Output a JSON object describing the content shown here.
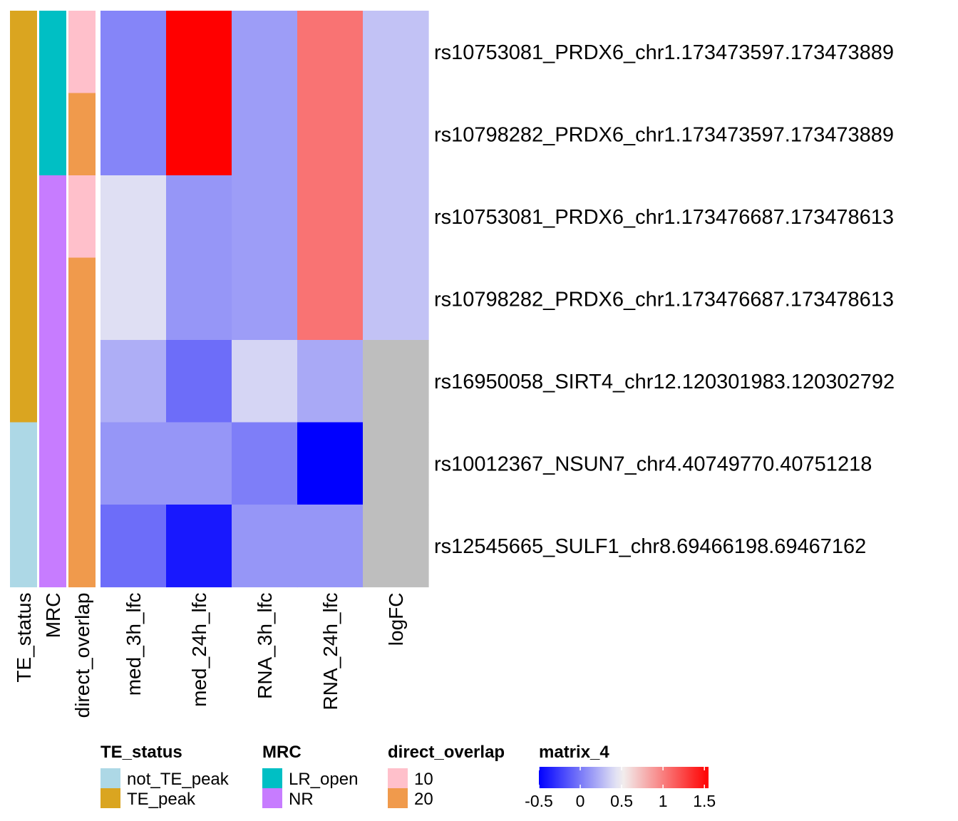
{
  "chart_data": {
    "type": "heatmap",
    "rows": [
      "rs10753081_PRDX6_chr1.173473597.173473889",
      "rs10798282_PRDX6_chr1.173473597.173473889",
      "rs10753081_PRDX6_chr1.173476687.173478613",
      "rs10798282_PRDX6_chr1.173476687.173478613",
      "rs16950058_SIRT4_chr12.120301983.120302792",
      "rs10012367_NSUN7_chr4.40749770.40751218",
      "rs12545665_SULF1_chr8.69466198.69467162"
    ],
    "columns": [
      "med_3h_lfc",
      "med_24h_lfc",
      "RNA_3h_lfc",
      "RNA_24h_lfc",
      "logFC"
    ],
    "values": [
      [
        0.05,
        1.55,
        0.15,
        1.05,
        0.3
      ],
      [
        0.05,
        1.55,
        0.15,
        1.05,
        0.3
      ],
      [
        0.42,
        0.12,
        0.15,
        1.05,
        0.3
      ],
      [
        0.42,
        0.12,
        0.15,
        1.05,
        0.3
      ],
      [
        0.22,
        -0.05,
        0.38,
        0.2,
        null
      ],
      [
        0.12,
        0.12,
        0.02,
        -0.5,
        null
      ],
      [
        -0.05,
        -0.4,
        0.12,
        0.12,
        null
      ]
    ],
    "na_color": "#BEBEBE",
    "color_scale": {
      "name": "matrix_4",
      "min": -0.5,
      "mid": 0.5,
      "max": 1.55,
      "low_color": "#0000FF",
      "mid_color": "#F2F2F2",
      "high_color": "#FF0000",
      "ticks": [
        -0.5,
        0,
        0.5,
        1,
        1.5
      ]
    },
    "annotations": [
      {
        "name": "TE_status",
        "values": [
          "TE_peak",
          "TE_peak",
          "TE_peak",
          "TE_peak",
          "TE_peak",
          "not_TE_peak",
          "not_TE_peak"
        ],
        "colors": {
          "not_TE_peak": "#ADD8E6",
          "TE_peak": "#DAA520"
        }
      },
      {
        "name": "MRC",
        "values": [
          "LR_open",
          "LR_open",
          "NR",
          "NR",
          "NR",
          "NR",
          "NR"
        ],
        "colors": {
          "LR_open": "#00BFC4",
          "NR": "#C77CFF"
        }
      },
      {
        "name": "direct_overlap",
        "values": [
          "10",
          "20",
          "10",
          "20",
          "20",
          "20",
          "20"
        ],
        "colors": {
          "10": "#FFC0CB",
          "20": "#F09A4C"
        }
      }
    ],
    "legends": [
      {
        "title": "TE_status",
        "items": [
          "not_TE_peak",
          "TE_peak"
        ]
      },
      {
        "title": "MRC",
        "items": [
          "LR_open",
          "NR"
        ]
      },
      {
        "title": "direct_overlap",
        "items": [
          "10",
          "20"
        ]
      }
    ]
  }
}
